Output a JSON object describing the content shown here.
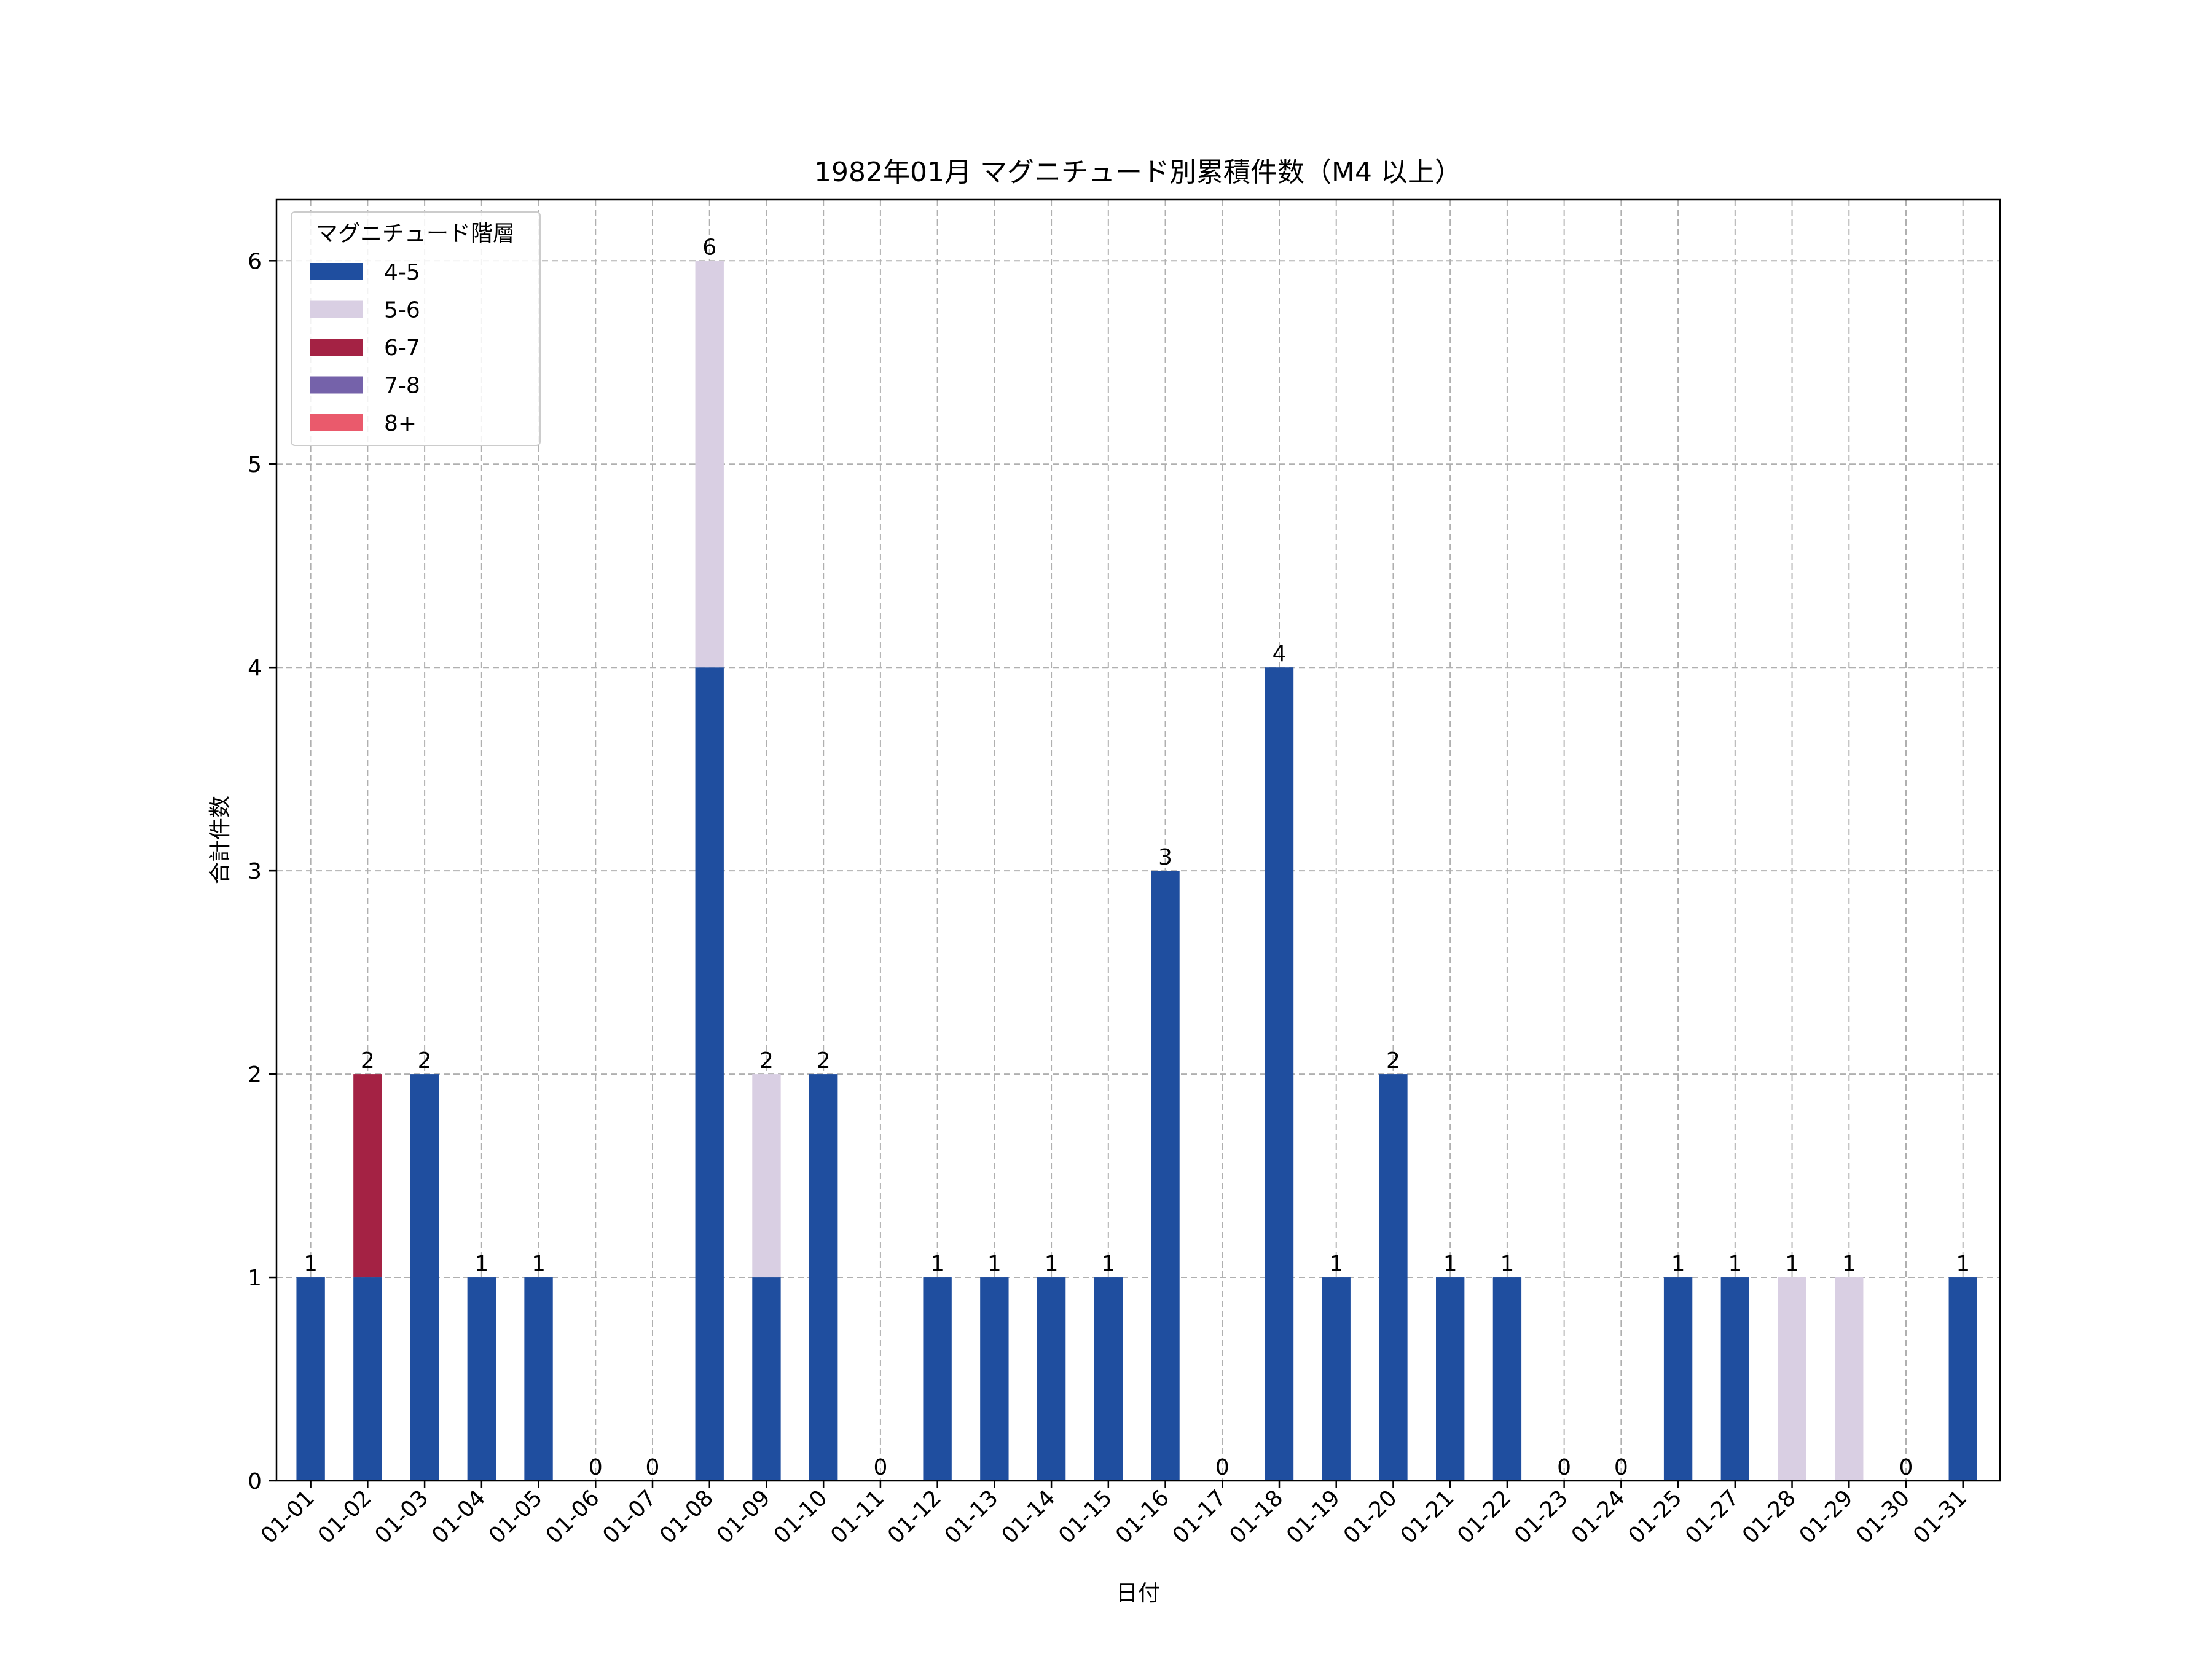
{
  "chart_data": {
    "type": "bar",
    "stacked": true,
    "title": "1982年01月 マグニチュード別累積件数（M4 以上）",
    "xlabel": "日付",
    "ylabel": "合計件数",
    "ylim": [
      0,
      6.3
    ],
    "yticks": [
      0,
      1,
      2,
      3,
      4,
      5,
      6
    ],
    "grid": true,
    "legend": {
      "title": "マグニチュード階層",
      "placement": "top-left"
    },
    "categories": [
      "01-01",
      "01-02",
      "01-03",
      "01-04",
      "01-05",
      "01-06",
      "01-07",
      "01-08",
      "01-09",
      "01-10",
      "01-11",
      "01-12",
      "01-13",
      "01-14",
      "01-15",
      "01-16",
      "01-17",
      "01-18",
      "01-19",
      "01-20",
      "01-21",
      "01-22",
      "01-23",
      "01-24",
      "01-25",
      "01-27",
      "01-28",
      "01-29",
      "01-30",
      "01-31"
    ],
    "series": [
      {
        "name": "4-5",
        "color": "#1f4e9f",
        "values": [
          1,
          1,
          2,
          1,
          1,
          0,
          0,
          4,
          1,
          2,
          0,
          1,
          1,
          1,
          1,
          3,
          0,
          4,
          1,
          2,
          1,
          1,
          0,
          0,
          1,
          1,
          0,
          0,
          0,
          1
        ]
      },
      {
        "name": "5-6",
        "color": "#d9cfe3",
        "values": [
          0,
          0,
          0,
          0,
          0,
          0,
          0,
          2,
          1,
          0,
          0,
          0,
          0,
          0,
          0,
          0,
          0,
          0,
          0,
          0,
          0,
          0,
          0,
          0,
          0,
          0,
          1,
          1,
          0,
          0
        ]
      },
      {
        "name": "6-7",
        "color": "#a42244",
        "values": [
          0,
          1,
          0,
          0,
          0,
          0,
          0,
          0,
          0,
          0,
          0,
          0,
          0,
          0,
          0,
          0,
          0,
          0,
          0,
          0,
          0,
          0,
          0,
          0,
          0,
          0,
          0,
          0,
          0,
          0
        ]
      },
      {
        "name": "7-8",
        "color": "#7562aa",
        "values": [
          0,
          0,
          0,
          0,
          0,
          0,
          0,
          0,
          0,
          0,
          0,
          0,
          0,
          0,
          0,
          0,
          0,
          0,
          0,
          0,
          0,
          0,
          0,
          0,
          0,
          0,
          0,
          0,
          0,
          0
        ]
      },
      {
        "name": "8+",
        "color": "#ea5a6c",
        "values": [
          0,
          0,
          0,
          0,
          0,
          0,
          0,
          0,
          0,
          0,
          0,
          0,
          0,
          0,
          0,
          0,
          0,
          0,
          0,
          0,
          0,
          0,
          0,
          0,
          0,
          0,
          0,
          0,
          0,
          0
        ]
      }
    ],
    "totals": [
      1,
      2,
      2,
      1,
      1,
      0,
      0,
      6,
      2,
      2,
      0,
      1,
      1,
      1,
      1,
      3,
      0,
      4,
      1,
      2,
      1,
      1,
      0,
      0,
      1,
      1,
      1,
      1,
      0,
      1
    ]
  }
}
